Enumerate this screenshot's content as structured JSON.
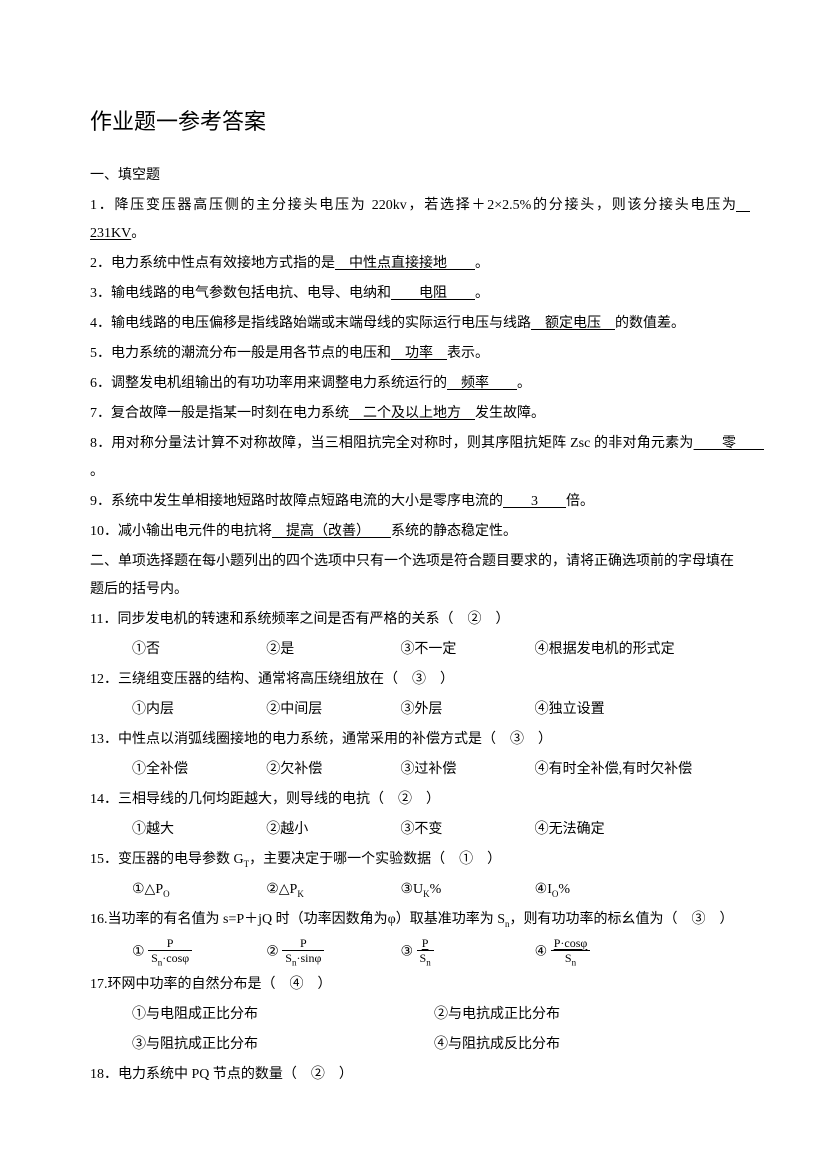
{
  "title": "作业题一参考答案",
  "section1_header": "一、填空题",
  "q1_prefix": "1．降压变压器高压侧的主分接头电压为 220kv，若选择＋2×2.5%的分接头，则该分接头电压为",
  "q1_answer": "　231KV",
  "q1_suffix": "。",
  "q2_prefix": "2．电力系统中性点有效接地方式指的是",
  "q2_answer": "　中性点直接接地　　",
  "q2_suffix": "。",
  "q3_prefix": "3．输电线路的电气参数包括电抗、电导、电纳和",
  "q3_answer": "　　电阻　　",
  "q3_suffix": "。",
  "q4_prefix": "4．输电线路的电压偏移是指线路始端或末端母线的实际运行电压与线路",
  "q4_answer": "　额定电压　",
  "q4_suffix": "的数值差。",
  "q5_prefix": "5．电力系统的潮流分布一般是用各节点的电压和",
  "q5_answer": "　功率　",
  "q5_suffix": "表示。",
  "q6_prefix": "6．调整发电机组输出的有功功率用来调整电力系统运行的",
  "q6_answer": "　频率　　",
  "q6_suffix": "。",
  "q7_prefix": "7．复合故障一般是指某一时刻在电力系统",
  "q7_answer": "　二个及以上地方　",
  "q7_suffix": "发生故障。",
  "q8_prefix": "8．用对称分量法计算不对称故障，当三相阻抗完全对称时，则其序阻抗矩阵 Zsc 的非对角元素为",
  "q8_answer": "　　零　　",
  "q8_suffix": "。",
  "q9_prefix": "9．系统中发生单相接地短路时故障点短路电流的大小是零序电流的",
  "q9_answer": "　　3　　",
  "q9_suffix": "倍。",
  "q10_prefix": "10．减小输出电元件的电抗将",
  "q10_answer": "　提高（改善）　　",
  "q10_suffix": "系统的静态稳定性。",
  "section2_header": "二、单项选择题在每小题列出的四个选项中只有一个选项是符合题目要求的，请将正确选项前的字母填在题后的括号内。",
  "q11": "11．同步发电机的转速和系统频率之间是否有严格的关系（　②　）",
  "q11_opts": [
    "①否",
    "②是",
    "③不一定",
    "④根据发电机的形式定"
  ],
  "q12": "12．三绕组变压器的结构、通常将高压绕组放在（　③　）",
  "q12_opts": [
    "①内层",
    "②中间层",
    "③外层",
    "④独立设置"
  ],
  "q13": "13．中性点以消弧线圈接地的电力系统，通常采用的补偿方式是（　③　）",
  "q13_opts": [
    "①全补偿",
    "②欠补偿",
    "③过补偿",
    "④有时全补偿,有时欠补偿"
  ],
  "q14": "14．三相导线的几何均距越大，则导线的电抗（　②　）",
  "q14_opts": [
    "①越大",
    "②越小",
    "③不变",
    "④无法确定"
  ],
  "q15_prefix": "15．变压器的电导参数 G",
  "q15_sub": "T",
  "q15_suffix": "，主要决定于哪一个实验数据（　①　）",
  "q15_opt1_prefix": "①△P",
  "q15_opt1_sub": "O",
  "q15_opt2_prefix": "②△P",
  "q15_opt2_sub": "K",
  "q15_opt3_prefix": "③U",
  "q15_opt3_sub": "K",
  "q15_opt3_suffix": "%",
  "q15_opt4_prefix": "④I",
  "q15_opt4_sub": "O",
  "q15_opt4_suffix": "%",
  "q16_prefix": "16.当功率的有名值为 s=P＋jQ 时（功率因数角为φ）取基准功率为 S",
  "q16_sub": "n",
  "q16_suffix": "，则有功功率的标幺值为（　③　）",
  "q16_opt1": "①",
  "q16_opt1_num": "P",
  "q16_opt1_den_a": "S",
  "q16_opt1_den_sub": "n",
  "q16_opt1_den_b": "·cosφ",
  "q16_opt2": "②",
  "q16_opt2_num": "P",
  "q16_opt2_den_a": "S",
  "q16_opt2_den_sub": "n",
  "q16_opt2_den_b": "·sinφ",
  "q16_opt3": "③",
  "q16_opt3_num": "P",
  "q16_opt3_den_a": "S",
  "q16_opt3_den_sub": "n",
  "q16_opt4": "④",
  "q16_opt4_num": "P·cosφ",
  "q16_opt4_den_a": "S",
  "q16_opt4_den_sub": "n",
  "q17": "17.环网中功率的自然分布是（　④　）",
  "q17_opts": [
    "①与电阻成正比分布",
    "②与电抗成正比分布",
    "③与阻抗成正比分布",
    "④与阻抗成反比分布"
  ],
  "q18": "18．电力系统中 PQ 节点的数量（　②　）"
}
